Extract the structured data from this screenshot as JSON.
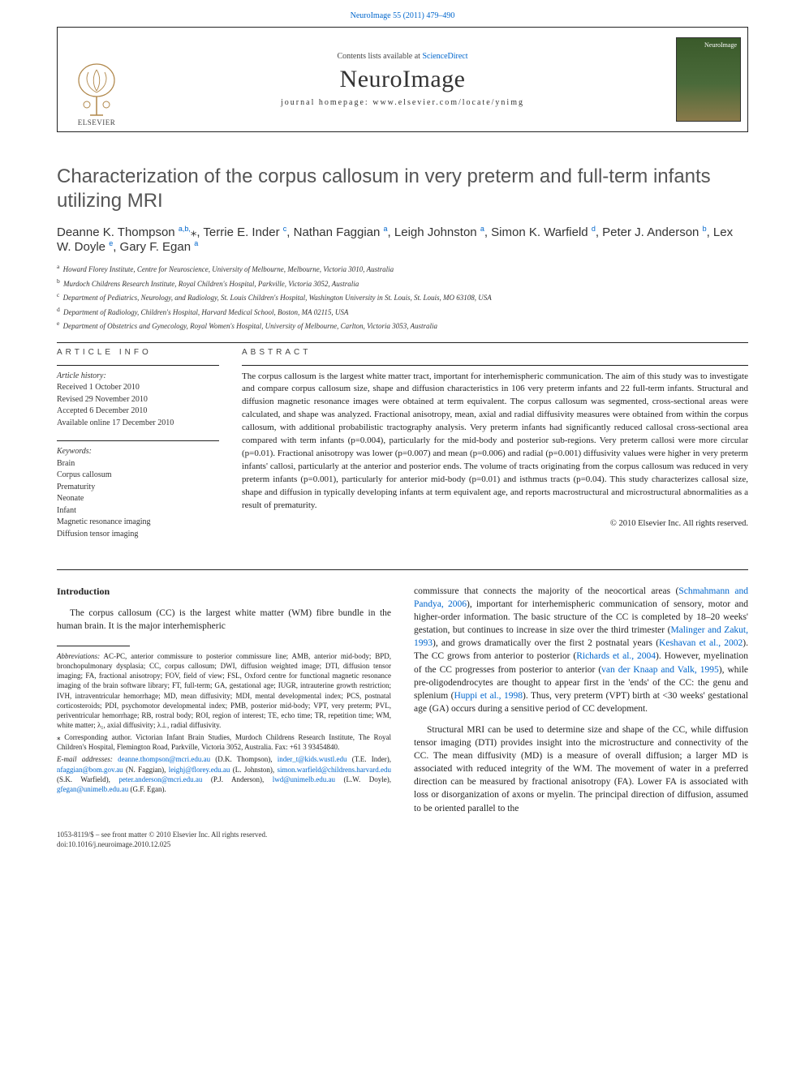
{
  "top_citation_link": "NeuroImage 55 (2011) 479–490",
  "masthead": {
    "contents_prefix": "Contents lists available at ",
    "contents_link": "ScienceDirect",
    "journal": "NeuroImage",
    "homepage_prefix": "journal homepage: ",
    "homepage": "www.elsevier.com/locate/ynimg",
    "publisher": "ELSEVIER",
    "cover_label": "NeuroImage"
  },
  "title": "Characterization of the corpus callosum in very preterm and full-term infants utilizing MRI",
  "authors_html": "Deanne K. Thompson <sup>a,b,</sup><span class='star'>⁎</span>, Terrie E. Inder <sup>c</sup>, Nathan Faggian <sup>a</sup>, Leigh Johnston <sup>a</sup>, Simon K. Warfield <sup>d</sup>, Peter J. Anderson <sup>b</sup>, Lex W. Doyle <sup>e</sup>, Gary F. Egan <sup>a</sup>",
  "affiliations": [
    {
      "sup": "a",
      "text": "Howard Florey Institute, Centre for Neuroscience, University of Melbourne, Melbourne, Victoria 3010, Australia"
    },
    {
      "sup": "b",
      "text": "Murdoch Childrens Research Institute, Royal Children's Hospital, Parkville, Victoria 3052, Australia"
    },
    {
      "sup": "c",
      "text": "Department of Pediatrics, Neurology, and Radiology, St. Louis Children's Hospital, Washington University in St. Louis, St. Louis, MO 63108, USA"
    },
    {
      "sup": "d",
      "text": "Department of Radiology, Children's Hospital, Harvard Medical School, Boston, MA 02115, USA"
    },
    {
      "sup": "e",
      "text": "Department of Obstetrics and Gynecology, Royal Women's Hospital, University of Melbourne, Carlton, Victoria 3053, Australia"
    }
  ],
  "article_info_head": "ARTICLE INFO",
  "abstract_head": "ABSTRACT",
  "history_label": "Article history:",
  "history": [
    "Received 1 October 2010",
    "Revised 29 November 2010",
    "Accepted 6 December 2010",
    "Available online 17 December 2010"
  ],
  "keywords_label": "Keywords:",
  "keywords": [
    "Brain",
    "Corpus callosum",
    "Prematurity",
    "Neonate",
    "Infant",
    "Magnetic resonance imaging",
    "Diffusion tensor imaging"
  ],
  "abstract": "The corpus callosum is the largest white matter tract, important for interhemispheric communication. The aim of this study was to investigate and compare corpus callosum size, shape and diffusion characteristics in 106 very preterm infants and 22 full-term infants. Structural and diffusion magnetic resonance images were obtained at term equivalent. The corpus callosum was segmented, cross-sectional areas were calculated, and shape was analyzed. Fractional anisotropy, mean, axial and radial diffusivity measures were obtained from within the corpus callosum, with additional probabilistic tractography analysis. Very preterm infants had significantly reduced callosal cross-sectional area compared with term infants (p=0.004), particularly for the mid-body and posterior sub-regions. Very preterm callosi were more circular (p=0.01). Fractional anisotropy was lower (p=0.007) and mean (p=0.006) and radial (p=0.001) diffusivity values were higher in very preterm infants' callosi, particularly at the anterior and posterior ends. The volume of tracts originating from the corpus callosum was reduced in very preterm infants (p=0.001), particularly for anterior mid-body (p=0.01) and isthmus tracts (p=0.04). This study characterizes callosal size, shape and diffusion in typically developing infants at term equivalent age, and reports macrostructural and microstructural abnormalities as a result of prematurity.",
  "copyright": "© 2010 Elsevier Inc. All rights reserved.",
  "intro_head": "Introduction",
  "intro_p1": "The corpus callosum (CC) is the largest white matter (WM) fibre bundle in the human brain. It is the major interhemispheric",
  "col2_p1_a": "commissure that connects the majority of the neocortical areas (",
  "ref1": "Schmahmann and Pandya, 2006",
  "col2_p1_b": "), important for interhemispheric communication of sensory, motor and higher-order information. The basic structure of the CC is completed by 18–20 weeks' gestation, but continues to increase in size over the third trimester (",
  "ref2": "Malinger and Zakut, 1993",
  "col2_p1_c": "), and grows dramatically over the first 2 postnatal years (",
  "ref3": "Keshavan et al., 2002",
  "col2_p1_d": "). The CC grows from anterior to posterior (",
  "ref4": "Richards et al., 2004",
  "col2_p1_e": "). However, myelination of the CC progresses from posterior to anterior (",
  "ref5": "van der Knaap and Valk, 1995",
  "col2_p1_f": "), while pre-oligodendrocytes are thought to appear first in the 'ends' of the CC: the genu and splenium (",
  "ref6": "Huppi et al., 1998",
  "col2_p1_g": "). Thus, very preterm (VPT) birth at <30 weeks' gestational age (GA) occurs during a sensitive period of CC development.",
  "col2_p2": "Structural MRI can be used to determine size and shape of the CC, while diffusion tensor imaging (DTI) provides insight into the microstructure and connectivity of the CC. The mean diffusivity (MD) is a measure of overall diffusion; a larger MD is associated with reduced integrity of the WM. The movement of water in a preferred direction can be measured by fractional anisotropy (FA). Lower FA is associated with loss or disorganization of axons or myelin. The principal direction of diffusion, assumed to be oriented parallel to the",
  "abbrev_label": "Abbreviations:",
  "abbrev_text": " AC-PC, anterior commissure to posterior commissure line; AMB, anterior mid-body; BPD, bronchopulmonary dysplasia; CC, corpus callosum; DWI, diffusion weighted image; DTI, diffusion tensor imaging; FA, fractional anisotropy; FOV, field of view; FSL, Oxford centre for functional magnetic resonance imaging of the brain software library; FT, full-term; GA, gestational age; IUGR, intrauterine growth restriction; IVH, intraventricular hemorrhage; MD, mean diffusivity; MDI, mental developmental index; PCS, postnatal corticosteroids; PDI, psychomotor developmental index; PMB, posterior mid-body; VPT, very preterm; PVL, periventricular hemorrhage; RB, rostral body; ROI, region of interest; TE, echo time; TR, repetition time; WM, white matter; λ₁, axial diffusivity; λ⊥, radial diffusivity.",
  "corresp_label": "⁎ Corresponding author.",
  "corresp_text": " Victorian Infant Brain Studies, Murdoch Childrens Research Institute, The Royal Children's Hospital, Flemington Road, Parkville, Victoria 3052, Australia. Fax: +61 3 93454840.",
  "email_label": "E-mail addresses:",
  "emails": [
    {
      "addr": "deanne.thompson@mcri.edu.au",
      "who": "(D.K. Thompson)"
    },
    {
      "addr": "inder_t@kids.wustl.edu",
      "who": "(T.E. Inder)"
    },
    {
      "addr": "nfaggian@bom.gov.au",
      "who": "(N. Faggian)"
    },
    {
      "addr": "leighj@florey.edu.au",
      "who": "(L. Johnston)"
    },
    {
      "addr": "simon.warfield@childrens.harvard.edu",
      "who": "(S.K. Warfield)"
    },
    {
      "addr": "peter.anderson@mcri.edu.au",
      "who": "(P.J. Anderson)"
    },
    {
      "addr": "lwd@unimelb.edu.au",
      "who": "(L.W. Doyle)"
    },
    {
      "addr": "gfegan@unimelb.edu.au",
      "who": "(G.F. Egan)"
    }
  ],
  "footer1": "1053-8119/$ – see front matter © 2010 Elsevier Inc. All rights reserved.",
  "footer2": "doi:10.1016/j.neuroimage.2010.12.025",
  "colors": {
    "link": "#0066cc",
    "title_gray": "#555555",
    "text": "#222222",
    "border": "#222222"
  }
}
